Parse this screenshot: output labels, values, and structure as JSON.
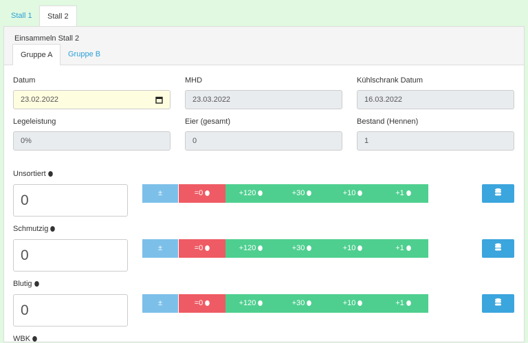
{
  "tabs": [
    "Stall 1",
    "Stall 2"
  ],
  "panel_title": "Einsammeln Stall 2",
  "subtabs": [
    "Gruppe A",
    "Gruppe B"
  ],
  "fields": [
    {
      "label": "Datum",
      "value": "23.02.2022"
    },
    {
      "label": "MHD",
      "value": "23.03.2022"
    },
    {
      "label": "Kühlschrank Datum",
      "value": "16.03.2022"
    },
    {
      "label": "Legeleistung",
      "value": "0%"
    },
    {
      "label": "Eier (gesamt)",
      "value": "0"
    },
    {
      "label": "Bestand (Hennen)",
      "value": "1"
    }
  ],
  "buttons": [
    "±",
    "=0",
    "+120",
    "+30",
    "+10",
    "+1"
  ],
  "rows": [
    {
      "label": "Unsortiert",
      "value": "0"
    },
    {
      "label": "Schmutzig",
      "value": "0"
    },
    {
      "label": "Blutig",
      "value": "0"
    },
    {
      "label": "WBK",
      "value": ""
    }
  ]
}
